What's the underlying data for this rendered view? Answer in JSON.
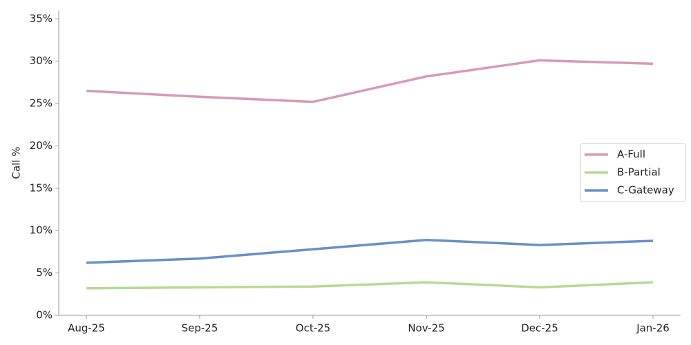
{
  "chart_data": {
    "type": "line",
    "y_label": "Call %",
    "categories": [
      "Aug-25",
      "Sep-25",
      "Oct-25",
      "Nov-25",
      "Dec-25",
      "Jan-26"
    ],
    "series": [
      {
        "name": "A-Full",
        "color": "#d899b7",
        "values": [
          26.5,
          25.8,
          25.2,
          28.2,
          30.1,
          29.7
        ]
      },
      {
        "name": "B-Partial",
        "color": "#b5db91",
        "values": [
          3.2,
          3.3,
          3.4,
          3.9,
          3.3,
          3.9
        ]
      },
      {
        "name": "C-Gateway",
        "color": "#6690c8",
        "values": [
          6.2,
          6.7,
          7.8,
          8.9,
          8.3,
          8.8
        ]
      }
    ],
    "ylim": [
      0,
      36
    ],
    "yticks": [
      {
        "value": 0,
        "label": "0%"
      },
      {
        "value": 5,
        "label": "5%"
      },
      {
        "value": 10,
        "label": "10%"
      },
      {
        "value": 15,
        "label": "15%"
      },
      {
        "value": 20,
        "label": "20%"
      },
      {
        "value": 25,
        "label": "25%"
      },
      {
        "value": 30,
        "label": "30%"
      },
      {
        "value": 35,
        "label": "35%"
      }
    ],
    "grid": false,
    "legend": "right"
  }
}
